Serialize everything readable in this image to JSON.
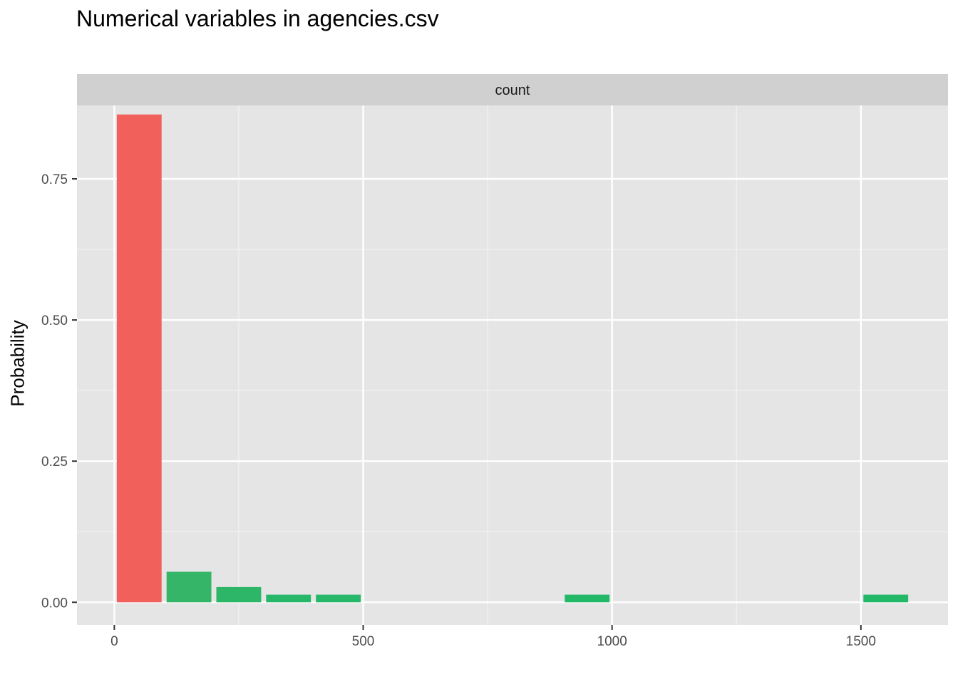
{
  "chart_data": {
    "type": "bar",
    "title": "Numerical variables in agencies.csv",
    "xlabel": "",
    "ylabel": "Probability",
    "facet_label": "count",
    "xlim": [
      -75,
      1675
    ],
    "ylim": [
      -0.04,
      0.88
    ],
    "x_ticks": [
      0,
      500,
      1000,
      1500
    ],
    "x_tick_labels": [
      "0",
      "500",
      "1000",
      "1500"
    ],
    "y_ticks": [
      0.0,
      0.25,
      0.5,
      0.75
    ],
    "y_tick_labels": [
      "0.00",
      "0.25",
      "0.50",
      "0.75"
    ],
    "bin_width": 100,
    "bins": [
      {
        "x0": 0,
        "x1": 100,
        "value": 0.864,
        "color": "#f2605c"
      },
      {
        "x0": 100,
        "x1": 200,
        "value": 0.054,
        "color": "#35b567"
      },
      {
        "x0": 200,
        "x1": 300,
        "value": 0.027,
        "color": "#2db668"
      },
      {
        "x0": 300,
        "x1": 400,
        "value": 0.0135,
        "color": "#26b768"
      },
      {
        "x0": 400,
        "x1": 500,
        "value": 0.0135,
        "color": "#26b768"
      },
      {
        "x0": 500,
        "x1": 600,
        "value": 0,
        "color": "#22b868"
      },
      {
        "x0": 600,
        "x1": 700,
        "value": 0,
        "color": "#22b868"
      },
      {
        "x0": 700,
        "x1": 800,
        "value": 0,
        "color": "#22b868"
      },
      {
        "x0": 800,
        "x1": 900,
        "value": 0,
        "color": "#22b868"
      },
      {
        "x0": 900,
        "x1": 1000,
        "value": 0.0135,
        "color": "#22b868"
      },
      {
        "x0": 1000,
        "x1": 1100,
        "value": 0,
        "color": "#22b868"
      },
      {
        "x0": 1100,
        "x1": 1200,
        "value": 0,
        "color": "#22b868"
      },
      {
        "x0": 1200,
        "x1": 1300,
        "value": 0,
        "color": "#22b868"
      },
      {
        "x0": 1300,
        "x1": 1400,
        "value": 0,
        "color": "#22b868"
      },
      {
        "x0": 1400,
        "x1": 1500,
        "value": 0,
        "color": "#22b868"
      },
      {
        "x0": 1500,
        "x1": 1600,
        "value": 0.0135,
        "color": "#22b868"
      }
    ],
    "grid": true,
    "legend": "none",
    "colors": {
      "panel_background": "#e5e5e5",
      "strip_background": "#d0d0d0",
      "grid_major": "#ffffff",
      "grid_minor": "#f2f2f2"
    }
  }
}
